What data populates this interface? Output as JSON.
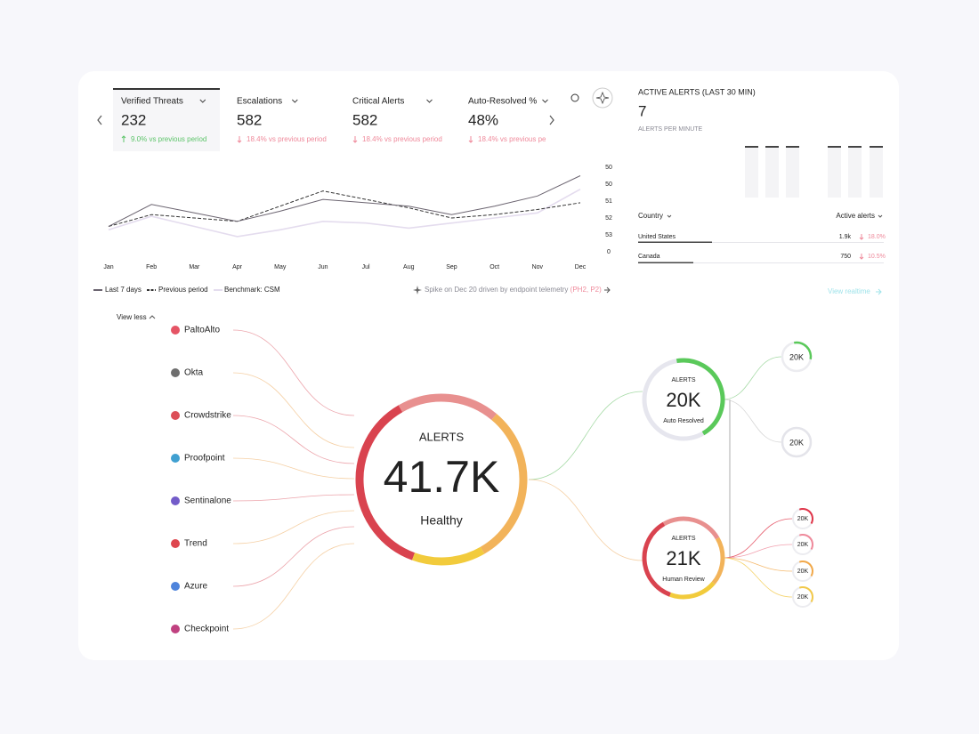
{
  "kpis": [
    {
      "label": "Verified Threats",
      "value": "232",
      "change": "9.0% vs previous period",
      "trend": "up"
    },
    {
      "label": "Escalations",
      "value": "582",
      "change": "18.4% vs previous period",
      "trend": "down"
    },
    {
      "label": "Critical Alerts",
      "value": "582",
      "change": "18.4% vs previous period",
      "trend": "down"
    },
    {
      "label": "Auto-Resolved %",
      "value": "48%",
      "change": "18.4% vs previous pe",
      "trend": "down"
    }
  ],
  "chart_data": {
    "type": "line",
    "categories": [
      "Jan",
      "Feb",
      "Mar",
      "Apr",
      "May",
      "Jun",
      "Jul",
      "Aug",
      "Sep",
      "Oct",
      "Nov",
      "Dec"
    ],
    "ylim": [
      0,
      5
    ],
    "yticks": [
      {
        "value": 5,
        "label": "50"
      },
      {
        "value": 4,
        "label": "50"
      },
      {
        "value": 3,
        "label": "51"
      },
      {
        "value": 2,
        "label": "52"
      },
      {
        "value": 1,
        "label": "53"
      },
      0
    ],
    "series": [
      {
        "name": "Last 7 days",
        "color": "#6b6470",
        "dash": false,
        "values": [
          1.5,
          2.8,
          2.3,
          1.8,
          2.4,
          3.1,
          2.9,
          2.7,
          2.2,
          2.7,
          3.3,
          4.5
        ]
      },
      {
        "name": "Previous period",
        "color": "#333333",
        "dash": true,
        "values": [
          1.5,
          2.2,
          2.0,
          1.8,
          2.7,
          3.6,
          3.1,
          2.6,
          2.0,
          2.2,
          2.5,
          2.9
        ]
      },
      {
        "name": "Benchmark: CSM",
        "color": "#e4dcee",
        "dash": false,
        "values": [
          1.3,
          2.1,
          1.5,
          0.9,
          1.3,
          1.8,
          1.7,
          1.4,
          1.7,
          2.0,
          2.3,
          3.7
        ]
      }
    ],
    "annotation": "Spike on Dec 20 driven by endpoint telemetry",
    "annotation_tag": "(PH2, P2)"
  },
  "active_alerts": {
    "title": "ACTIVE ALERTS (LAST 30 MIN)",
    "value": "7",
    "subtitle": "ALERTS PER MINUTE",
    "columns": [
      "Country",
      "Active alerts"
    ],
    "rows": [
      {
        "country": "United States",
        "count": "1.9k",
        "change": "18.0%"
      },
      {
        "country": "Canada",
        "count": "750",
        "change": "10.5%"
      }
    ],
    "link": "View realtime"
  },
  "flow": {
    "toggle": "View less",
    "sources": [
      "PaltoAlto",
      "Okta",
      "Crowdstrike",
      "Proofpoint",
      "Sentinalone",
      "Trend",
      "Azure",
      "Checkpoint"
    ],
    "center": {
      "label": "ALERTS",
      "value": "41.7K",
      "status": "Healthy"
    },
    "outcomes": [
      {
        "label": "ALERTS",
        "value": "20K",
        "name": "Auto Resolved"
      },
      {
        "label": "ALERTS",
        "value": "21K",
        "name": "Human Review"
      }
    ],
    "sub_nodes": [
      "20K",
      "20K",
      "20K",
      "20K",
      "20K",
      "20K"
    ]
  }
}
